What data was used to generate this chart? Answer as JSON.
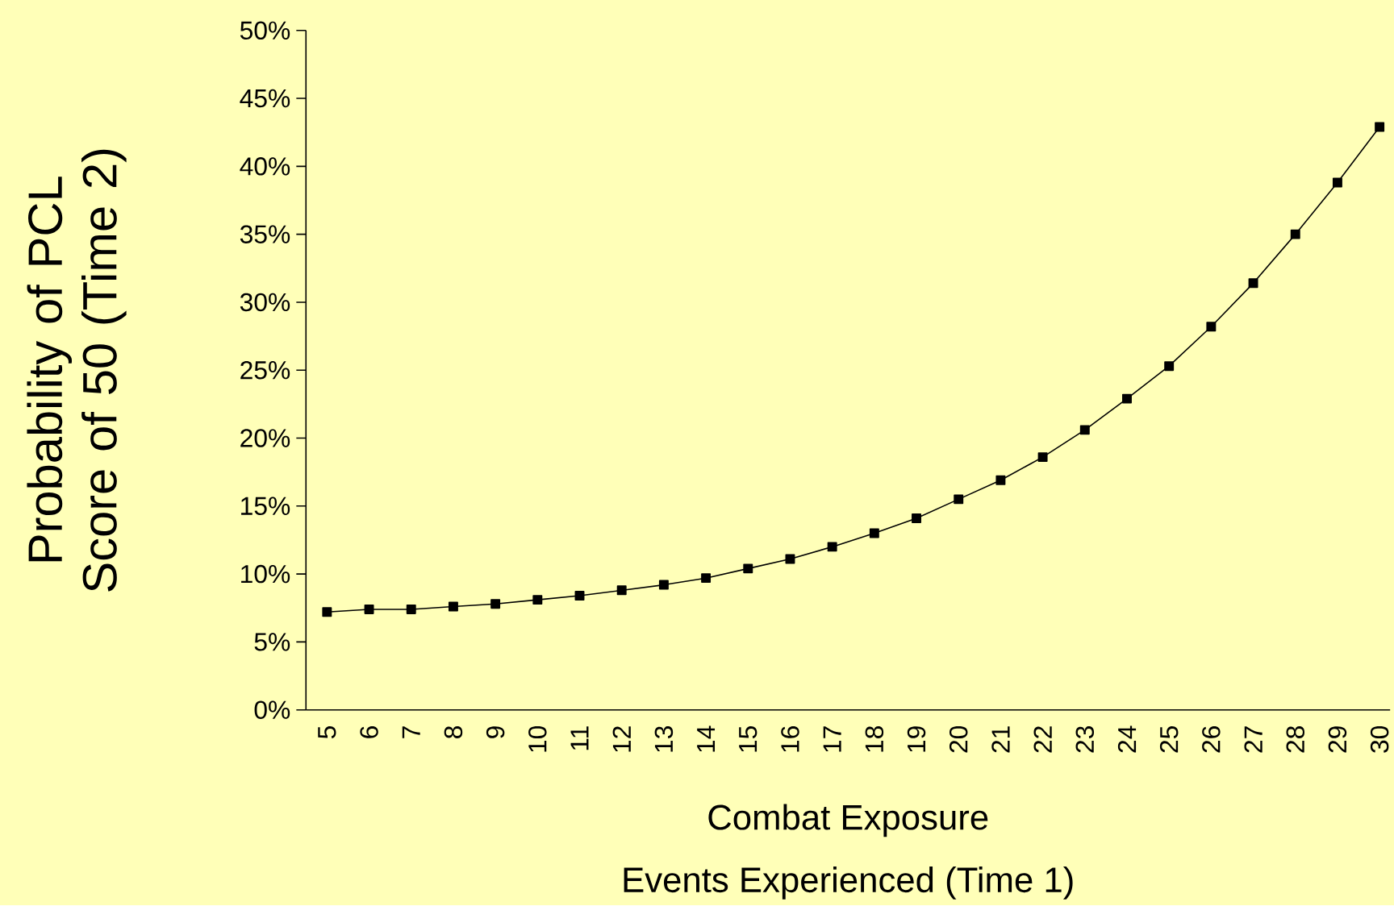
{
  "chart_data": {
    "type": "line",
    "xlabel": "Combat Exposure",
    "ylabel": "Probability of PCL Score of 50 (Time 2)",
    "annotations": [
      "Events Experienced (Time 1)"
    ],
    "categories": [
      "5",
      "6",
      "7",
      "8",
      "9",
      "10",
      "11",
      "12",
      "13",
      "14",
      "15",
      "16",
      "17",
      "18",
      "19",
      "20",
      "21",
      "22",
      "23",
      "24",
      "25",
      "26",
      "27",
      "28",
      "29",
      "30"
    ],
    "series": [
      {
        "color": "#000000",
        "values": [
          7.2,
          7.4,
          7.4,
          7.6,
          7.8,
          8.1,
          8.4,
          8.8,
          9.2,
          9.7,
          10.4,
          11.1,
          12.0,
          13.0,
          14.1,
          15.5,
          16.9,
          18.6,
          20.6,
          22.9,
          25.3,
          28.2,
          31.4,
          35.0,
          38.8,
          42.9
        ]
      }
    ],
    "marker": "square",
    "line_style": "solid",
    "ylim": [
      0,
      50
    ],
    "yticks": [
      {
        "value": 0,
        "label": "0%"
      },
      {
        "value": 5,
        "label": "5%"
      },
      {
        "value": 10,
        "label": "10%"
      },
      {
        "value": 15,
        "label": "15%"
      },
      {
        "value": 20,
        "label": "20%"
      },
      {
        "value": 25,
        "label": "25%"
      },
      {
        "value": 30,
        "label": "30%"
      },
      {
        "value": 35,
        "label": "35%"
      },
      {
        "value": 40,
        "label": "40%"
      },
      {
        "value": 45,
        "label": "45%"
      },
      {
        "value": 50,
        "label": "50%"
      }
    ]
  }
}
